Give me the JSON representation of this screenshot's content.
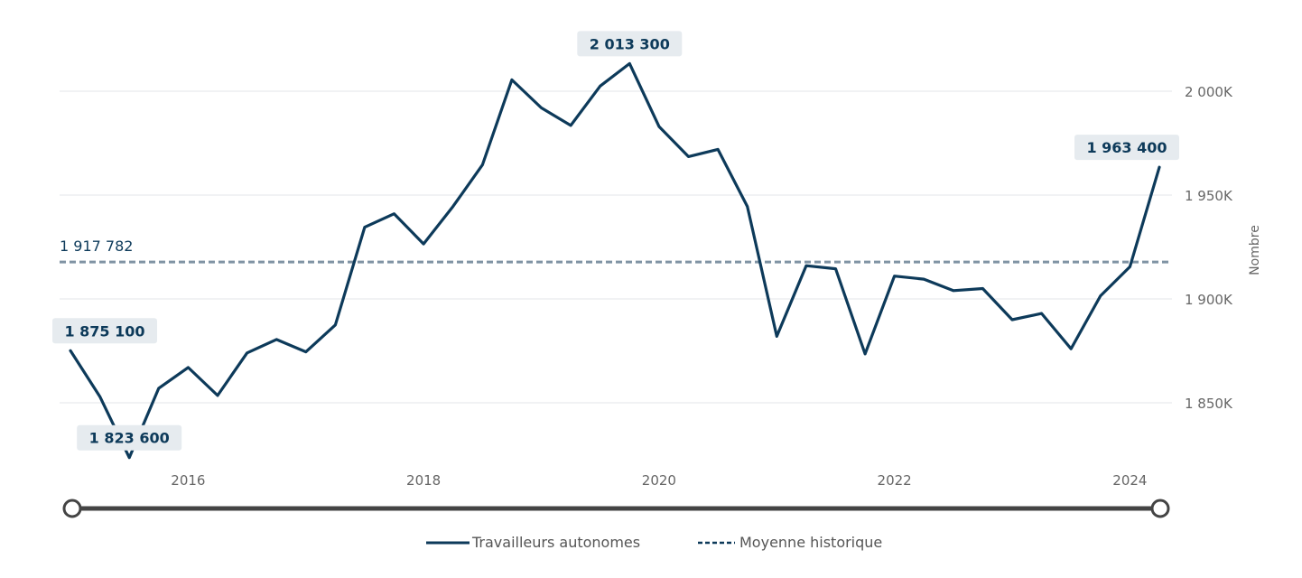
{
  "chart_data": {
    "type": "line",
    "ylabel": "Nombre",
    "ylim": [
      1820000,
      2020000
    ],
    "y_ticks": [
      {
        "value": 1850000,
        "label": "1 850K"
      },
      {
        "value": 1900000,
        "label": "1 900K"
      },
      {
        "value": 1950000,
        "label": "1 950K"
      },
      {
        "value": 2000000,
        "label": "2 000K"
      }
    ],
    "xlim": [
      2015.0,
      2024.5
    ],
    "x_ticks": [
      {
        "value": 2016,
        "label": "2016"
      },
      {
        "value": 2018,
        "label": "2018"
      },
      {
        "value": 2020,
        "label": "2020"
      },
      {
        "value": 2022,
        "label": "2022"
      },
      {
        "value": 2024,
        "label": "2024"
      }
    ],
    "series": [
      {
        "name": "Travailleurs autonomes",
        "color": "#0d3a5a",
        "x": [
          2015.0,
          2015.25,
          2015.5,
          2015.75,
          2016.0,
          2016.25,
          2016.5,
          2016.75,
          2017.0,
          2017.25,
          2017.5,
          2017.75,
          2018.0,
          2018.25,
          2018.5,
          2018.75,
          2019.0,
          2019.25,
          2019.5,
          2019.75,
          2020.0,
          2020.25,
          2020.5,
          2020.75,
          2021.0,
          2021.25,
          2021.5,
          2021.75,
          2022.0,
          2022.25,
          2022.5,
          2022.75,
          2023.0,
          2023.25,
          2023.5,
          2023.75,
          2024.0,
          2024.25
        ],
        "values": [
          1875100,
          1853000,
          1823600,
          1857000,
          1867000,
          1853500,
          1874000,
          1880500,
          1874500,
          1887500,
          1934500,
          1941000,
          1926500,
          1944500,
          1964500,
          2005500,
          1992000,
          1983500,
          2002500,
          2013300,
          1983000,
          1968500,
          1972000,
          1944500,
          1882000,
          1916000,
          1914500,
          1873500,
          1911000,
          1909500,
          1904000,
          1905000,
          1890000,
          1893000,
          1876000,
          1901500,
          1915500,
          1963400
        ]
      }
    ],
    "reference_line": {
      "name": "Moyenne historique",
      "value": 1917782,
      "label": "1 917 782",
      "color": "#7f93a3"
    },
    "callouts": [
      {
        "x": 2015.0,
        "value": 1875100,
        "label": "1 875 100",
        "position": "above"
      },
      {
        "x": 2015.5,
        "value": 1823600,
        "label": "1 823 600",
        "position": "above"
      },
      {
        "x": 2019.75,
        "value": 2013300,
        "label": "2 013 300",
        "position": "above"
      },
      {
        "x": 2024.25,
        "value": 1963400,
        "label": "1 963 400",
        "position": "above"
      }
    ],
    "legend": {
      "placement": "bottom-center",
      "items": [
        {
          "label": "Travailleurs autonomes",
          "style": "solid"
        },
        {
          "label": "Moyenne historique",
          "style": "dashed"
        }
      ]
    },
    "navigator": {
      "visible": true,
      "range_start": 2015.0,
      "range_end": 2024.25
    }
  }
}
